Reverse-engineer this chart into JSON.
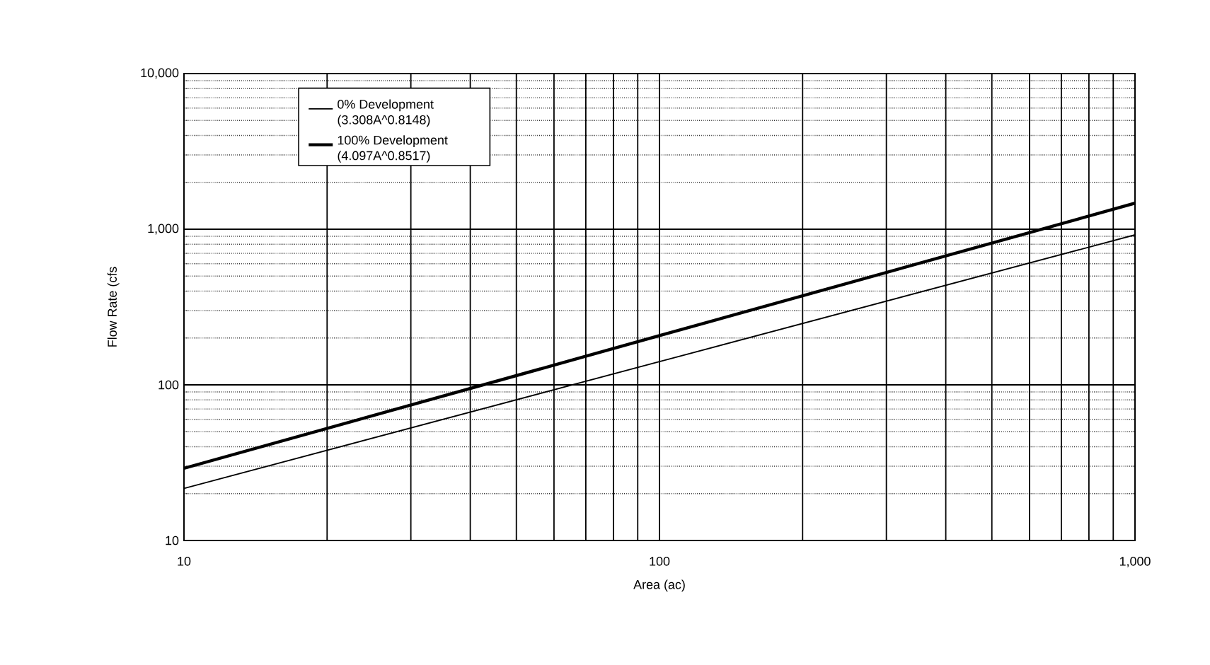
{
  "chart_data": {
    "type": "line",
    "xlabel": "Area (ac)",
    "ylabel": "Flow Rate (cfs",
    "x": [
      10,
      100,
      1000
    ],
    "series": [
      {
        "name": "0% Development (3.308A^0.8148)",
        "color": "#000000",
        "values": [
          21.6,
          141,
          920
        ]
      },
      {
        "name": "100% Development (4.097A^0.8517)",
        "color": "#000000",
        "values": [
          29.1,
          207,
          1470
        ]
      }
    ],
    "xlim": [
      10,
      1000
    ],
    "ylim": [
      10,
      10000
    ],
    "xticks": [
      10,
      100,
      {
        "value": 1000,
        "label": "1,000"
      }
    ],
    "yticks": [
      10,
      100,
      {
        "value": 1000,
        "label": "1,000"
      },
      {
        "value": 10000,
        "label": "10,000"
      }
    ],
    "log": "xy",
    "grid": true,
    "legend": "top left",
    "marker": "none",
    "line_style": "solid"
  }
}
